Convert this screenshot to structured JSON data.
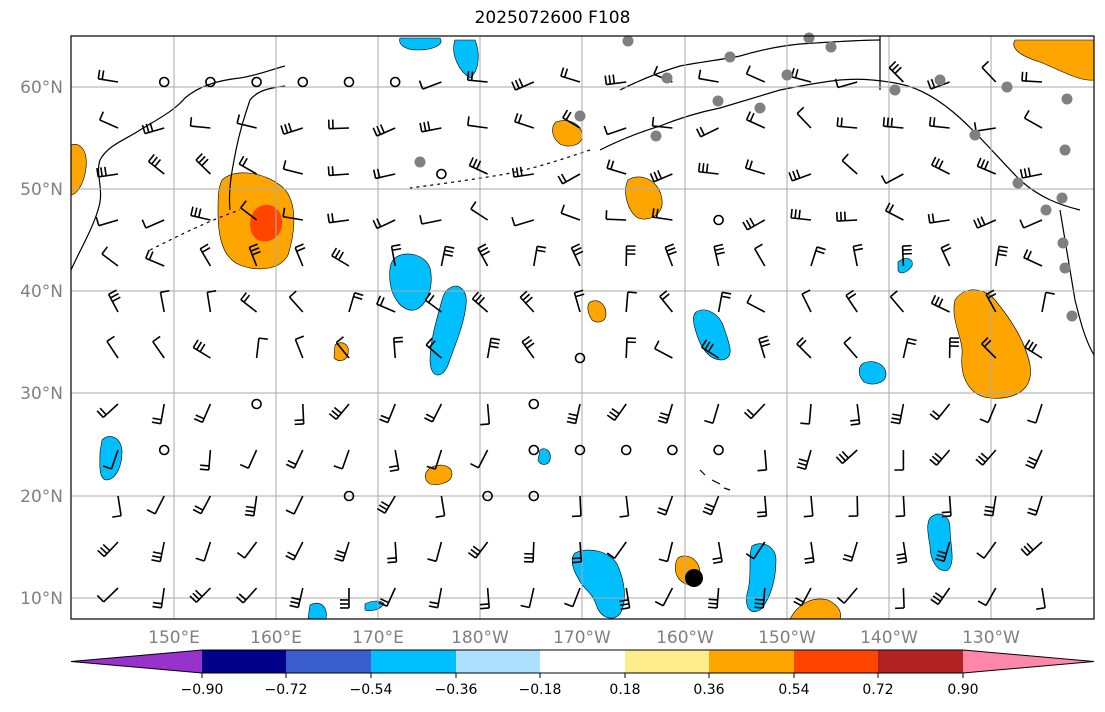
{
  "title": "2025072600 F108",
  "map": {
    "lat_labels": [
      "60°N",
      "50°N",
      "40°N",
      "30°N",
      "20°N",
      "10°N"
    ],
    "lon_labels": [
      "150°E",
      "160°E",
      "170°E",
      "180°W",
      "170°W",
      "160°W",
      "150°W",
      "140°W",
      "130°W"
    ],
    "grid": true,
    "label_color": "#808080"
  },
  "colorbar": {
    "ticks": [
      "−0.90",
      "−0.72",
      "−0.54",
      "−0.36",
      "−0.18",
      "0.18",
      "0.36",
      "0.54",
      "0.72",
      "0.90"
    ],
    "colors": [
      "#9932CC",
      "#00008B",
      "#3A5FCD",
      "#00BFFF",
      "#ADDFFF",
      "#FFFFFF",
      "#FFEC8B",
      "#FFA500",
      "#FF4500",
      "#B22222",
      "#FF88AA"
    ],
    "extend": "both"
  },
  "legend_colors": {
    "positive": "#FFA500",
    "strong_positive": "#FF4500",
    "negative": "#00BFFF",
    "weak_negative": "#ADDFFF",
    "station_dots": "#808080"
  }
}
